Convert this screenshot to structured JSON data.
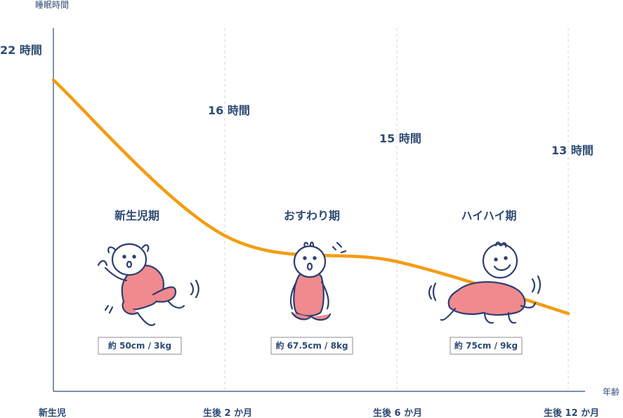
{
  "chart_data": {
    "type": "line",
    "ylabel": "睡眠時間",
    "xlabel": "年齢",
    "x_ticks": [
      "新生児",
      "生後 2 か月",
      "生後 6 か月",
      "生後 12 か月"
    ],
    "series": [
      {
        "values": [
          22,
          16,
          15,
          13
        ],
        "labels": [
          "22 時間",
          "16 時間",
          "15 時間",
          "13 時間"
        ]
      }
    ],
    "ylim": [
      10,
      24
    ],
    "grid": "vertical dashed",
    "line_color": "#f39c12"
  },
  "stages": [
    {
      "name": "新生児期",
      "spec": "約 50cm / 3kg",
      "icon": "newborn-baby-icon"
    },
    {
      "name": "おすわり期",
      "spec": "約 67.5cm / 8kg",
      "icon": "sitting-baby-icon"
    },
    {
      "name": "ハイハイ期",
      "spec": "約 75cm / 9kg",
      "icon": "crawling-baby-icon"
    }
  ],
  "colors": {
    "text": "#2d4a73",
    "line": "#f39c12",
    "baby_fill": "#f08a8e",
    "outline": "#2d3e70"
  }
}
